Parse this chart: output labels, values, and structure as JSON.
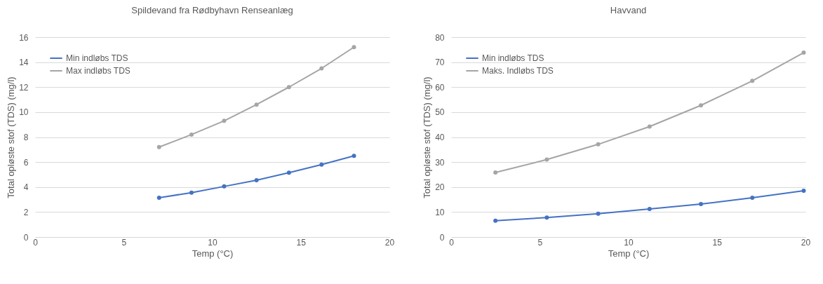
{
  "chart_data": [
    {
      "type": "line",
      "title": "Spildevand fra Rødbyhavn Renseanlæg",
      "xlabel": "Temp (°C)",
      "ylabel": "Total opløste stof (TDS) (mg/l)",
      "xlim": [
        0,
        20
      ],
      "xticks": [
        0,
        5,
        10,
        15,
        20
      ],
      "ylim": [
        0,
        16
      ],
      "yticks": [
        0,
        2,
        4,
        6,
        8,
        10,
        12,
        14,
        16
      ],
      "grid": "y",
      "legend": "top left",
      "marker": "circle",
      "line_style": "solid",
      "x": [
        7,
        8.83,
        10.67,
        12.5,
        14.33,
        16.17,
        18
      ],
      "series": [
        {
          "name": "Min indløbs TDS",
          "color": "#4472c4",
          "values": [
            3.15,
            3.55,
            4.05,
            4.55,
            5.15,
            5.8,
            6.5
          ]
        },
        {
          "name": "Max indløbs TDS",
          "color": "#a5a5a5",
          "values": [
            7.2,
            8.2,
            9.3,
            10.6,
            12.0,
            13.5,
            15.2
          ]
        }
      ]
    },
    {
      "type": "line",
      "title": "Havvand",
      "xlabel": "Temp (°C)",
      "ylabel": "Total opløste stof (TDS) (mg/l)",
      "xlim": [
        0,
        20
      ],
      "xticks": [
        0,
        5,
        10,
        15,
        20
      ],
      "ylim": [
        0,
        80
      ],
      "yticks": [
        0,
        10,
        20,
        30,
        40,
        50,
        60,
        70,
        80
      ],
      "grid": "y",
      "legend": "top left",
      "marker": "circle",
      "line_style": "solid",
      "x": [
        2.5,
        5.4,
        8.3,
        11.2,
        14.1,
        17,
        19.9
      ],
      "series": [
        {
          "name": "Min indløbs TDS",
          "color": "#4472c4",
          "values": [
            6.5,
            7.8,
            9.3,
            11.2,
            13.2,
            15.7,
            18.5
          ]
        },
        {
          "name": "Maks. Indløbs TDS",
          "color": "#a5a5a5",
          "values": [
            25.8,
            31,
            37.1,
            44.2,
            52.7,
            62.5,
            73.8
          ]
        }
      ]
    }
  ]
}
